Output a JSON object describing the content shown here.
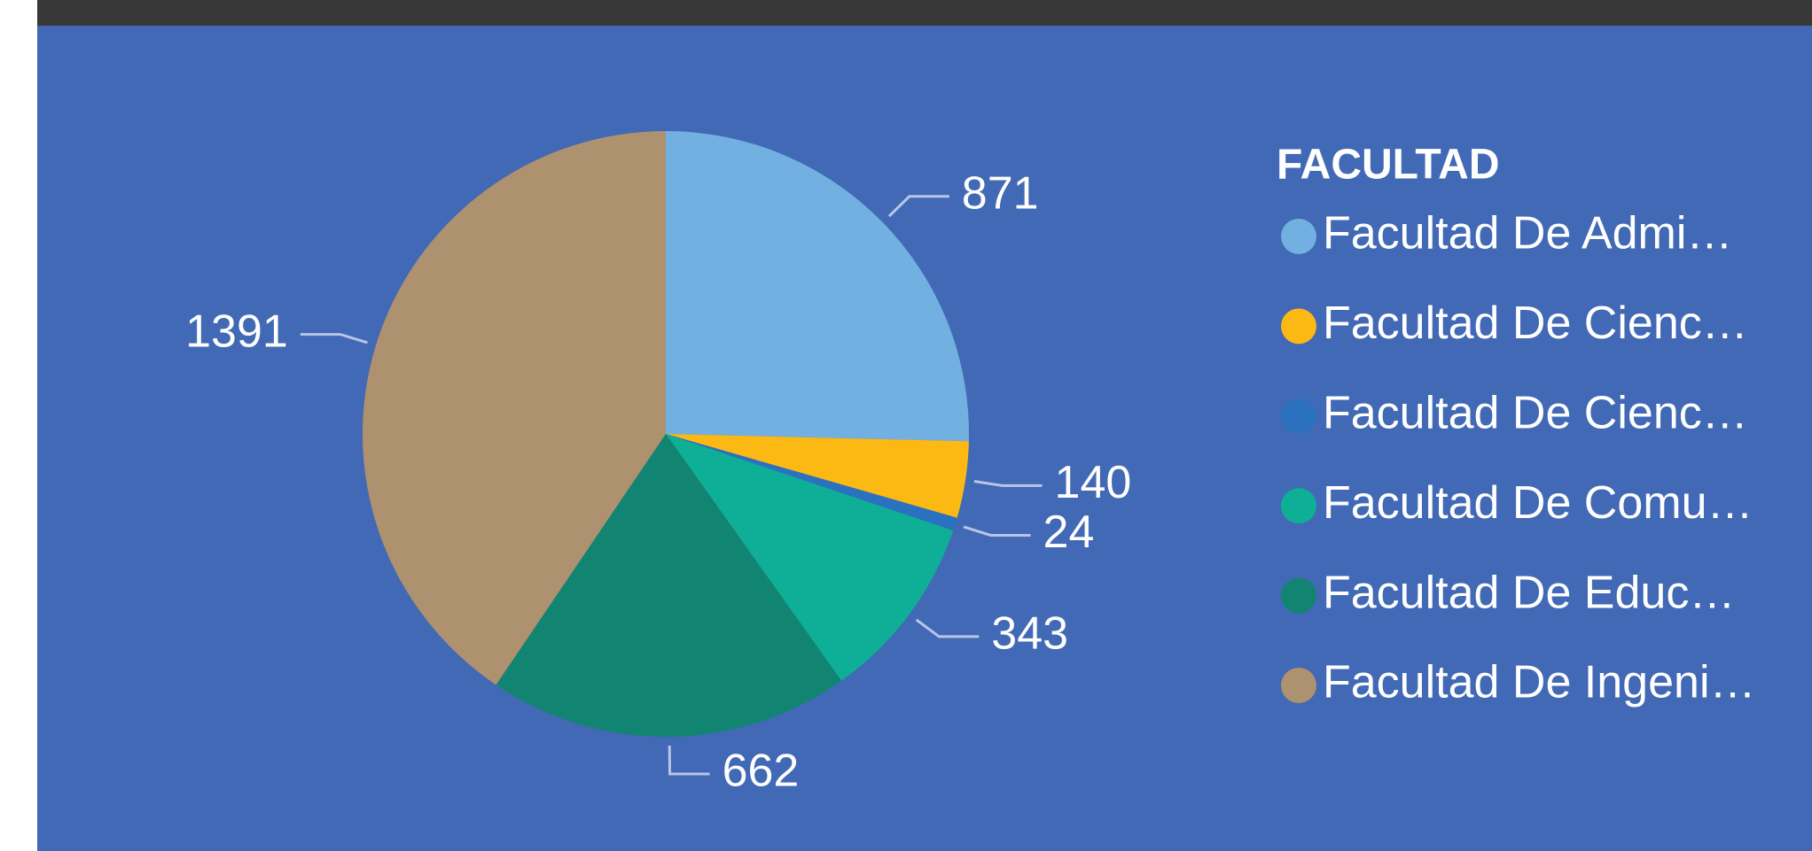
{
  "chart_data": {
    "type": "pie",
    "legend_title": "FACULTAD",
    "categories": [
      "Facultad De Admi…",
      "Facultad De Cienc…",
      "Facultad De Cienc…",
      "Facultad De Comu…",
      "Facultad De Educ…",
      "Facultad De Ingeni…"
    ],
    "values": [
      871,
      140,
      24,
      343,
      662,
      1391
    ],
    "colors": [
      "#71b0e0",
      "#fdb913",
      "#2a72c0",
      "#0eaf96",
      "#118571",
      "#ae916f"
    ],
    "legend": "right"
  }
}
